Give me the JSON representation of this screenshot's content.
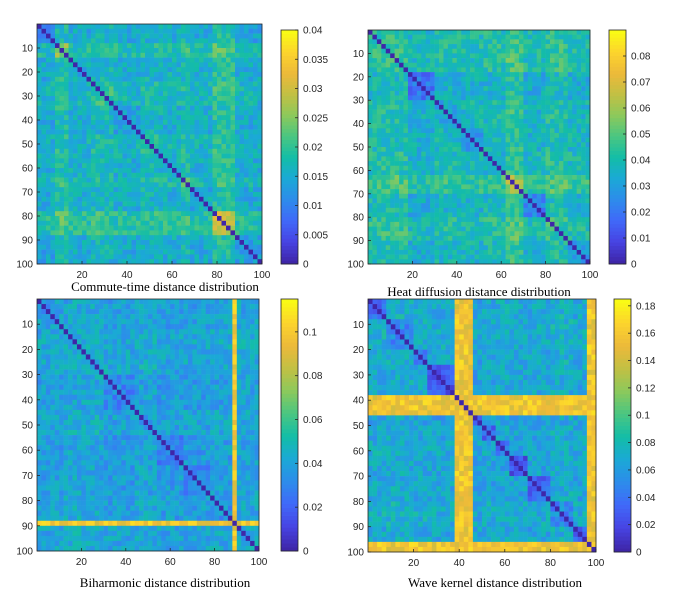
{
  "figure": {
    "colormap": [
      "#3e26a8",
      "#4744e3",
      "#4069f9",
      "#2d8ceb",
      "#1ba9d6",
      "#13bda7",
      "#49c682",
      "#8bc95c",
      "#c1c044",
      "#ecb93a",
      "#fcd32d",
      "#f9fb15"
    ]
  },
  "chart_data": [
    {
      "type": "heatmap",
      "title": "Commute-time distance distribution",
      "xlabel": "",
      "ylabel": "",
      "xlim": [
        0,
        100
      ],
      "ylim": [
        0,
        100
      ],
      "xticks": [
        20,
        40,
        60,
        80,
        100
      ],
      "yticks": [
        10,
        20,
        30,
        40,
        50,
        60,
        70,
        80,
        90,
        100
      ],
      "colorbar": {
        "range": [
          0,
          0.04
        ],
        "ticks": [
          "0",
          "0.005",
          "0.01",
          "0.015",
          "0.02",
          "0.025",
          "0.03",
          "0.035",
          "0.04"
        ]
      },
      "blocks": [
        [
          0,
          8
        ],
        [
          8,
          14
        ],
        [
          14,
          24
        ],
        [
          24,
          34
        ],
        [
          34,
          46
        ],
        [
          46,
          56
        ],
        [
          56,
          64
        ],
        [
          64,
          68
        ],
        [
          68,
          78
        ],
        [
          78,
          88
        ],
        [
          88,
          94
        ],
        [
          94,
          100
        ]
      ],
      "block_values": [
        0.012,
        0.026,
        0.015,
        0.02,
        0.014,
        0.018,
        0.016,
        0.022,
        0.015,
        0.029,
        0.013,
        0.012
      ],
      "off_block_value": 0.016
    },
    {
      "type": "heatmap",
      "title": "Heat diffusion distance distribution",
      "xlabel": "",
      "ylabel": "",
      "xlim": [
        0,
        100
      ],
      "ylim": [
        0,
        100
      ],
      "xticks": [
        20,
        40,
        60,
        80,
        100
      ],
      "yticks": [
        10,
        20,
        30,
        40,
        50,
        60,
        70,
        80,
        90,
        100
      ],
      "colorbar": {
        "range": [
          0,
          0.09
        ],
        "ticks": [
          "0",
          "0.01",
          "0.02",
          "0.03",
          "0.04",
          "0.05",
          "0.06",
          "0.07",
          "0.08"
        ]
      },
      "blocks": [
        [
          0,
          6
        ],
        [
          6,
          18
        ],
        [
          18,
          30
        ],
        [
          30,
          42
        ],
        [
          42,
          52
        ],
        [
          52,
          62
        ],
        [
          62,
          70
        ],
        [
          70,
          80
        ],
        [
          80,
          90
        ],
        [
          90,
          100
        ]
      ],
      "block_values": [
        0.04,
        0.045,
        0.02,
        0.032,
        0.028,
        0.035,
        0.06,
        0.025,
        0.045,
        0.03
      ],
      "off_block_value": 0.045
    },
    {
      "type": "heatmap",
      "title": "Biharmonic distance distribution",
      "xlabel": "",
      "ylabel": "",
      "xlim": [
        0,
        100
      ],
      "ylim": [
        0,
        100
      ],
      "xticks": [
        20,
        40,
        60,
        80,
        100
      ],
      "yticks": [
        10,
        20,
        30,
        40,
        50,
        60,
        70,
        80,
        90,
        100
      ],
      "colorbar": {
        "range": [
          0,
          0.115
        ],
        "ticks": [
          "0",
          "0.02",
          "0.04",
          "0.06",
          "0.08",
          "0.1"
        ]
      },
      "blocks": [
        [
          0,
          6
        ],
        [
          6,
          14
        ],
        [
          14,
          30
        ],
        [
          30,
          44
        ],
        [
          44,
          54
        ],
        [
          54,
          66
        ],
        [
          66,
          78
        ],
        [
          78,
          88
        ],
        [
          88,
          90
        ],
        [
          90,
          100
        ]
      ],
      "block_values": [
        0.03,
        0.04,
        0.045,
        0.03,
        0.04,
        0.025,
        0.03,
        0.035,
        0.1,
        0.04
      ],
      "off_block_value": 0.045,
      "bright_rows": [
        89,
        90
      ]
    },
    {
      "type": "heatmap",
      "title": "Wave kernel distance distribution",
      "xlabel": "",
      "ylabel": "",
      "xlim": [
        0,
        100
      ],
      "ylim": [
        0,
        100
      ],
      "xticks": [
        20,
        40,
        60,
        80,
        100
      ],
      "yticks": [
        10,
        20,
        30,
        40,
        50,
        60,
        70,
        80,
        90,
        100
      ],
      "colorbar": {
        "range": [
          0,
          0.185
        ],
        "ticks": [
          "0",
          "0.02",
          "0.04",
          "0.06",
          "0.08",
          "0.1",
          "0.12",
          "0.14",
          "0.16",
          "0.18"
        ]
      },
      "blocks": [
        [
          0,
          8
        ],
        [
          8,
          20
        ],
        [
          20,
          26
        ],
        [
          26,
          38
        ],
        [
          38,
          50
        ],
        [
          50,
          56
        ],
        [
          56,
          62
        ],
        [
          62,
          70
        ],
        [
          70,
          80
        ],
        [
          80,
          90
        ],
        [
          90,
          96
        ],
        [
          96,
          100
        ]
      ],
      "block_values": [
        0.04,
        0.05,
        0.04,
        0.03,
        0.02,
        0.03,
        0.04,
        0.025,
        0.03,
        0.05,
        0.03,
        0.16
      ],
      "off_block_value": 0.1,
      "bright_bands": [
        [
          38,
          46
        ],
        [
          96,
          100
        ]
      ]
    }
  ]
}
